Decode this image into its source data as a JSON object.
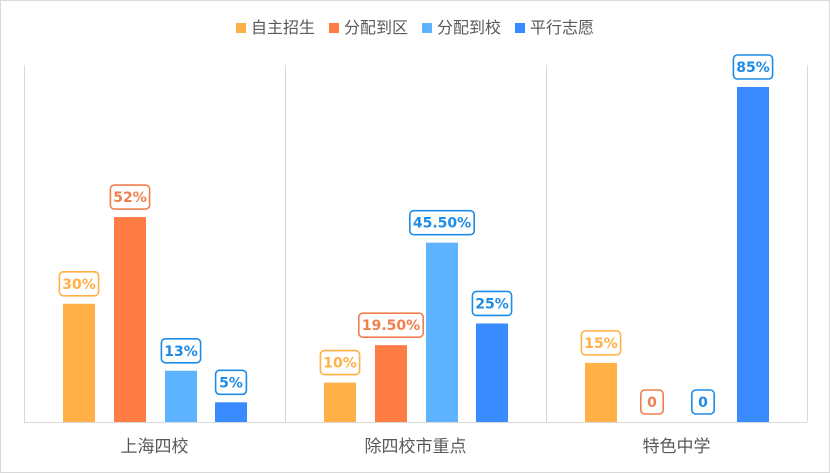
{
  "chart_data": {
    "type": "bar",
    "categories": [
      "上海四校",
      "除四校市重点",
      "特色中学"
    ],
    "series": [
      {
        "name": "自主招生",
        "color": "#FFB047",
        "values": [
          30,
          10,
          15
        ],
        "labels": [
          "30%",
          "10%",
          "15%"
        ]
      },
      {
        "name": "分配到区",
        "color": "#FF7D45",
        "values": [
          52,
          19.5,
          0
        ],
        "labels": [
          "52%",
          "19.50%",
          "0"
        ]
      },
      {
        "name": "分配到校",
        "color": "#5DB3FF",
        "values": [
          13,
          45.5,
          0
        ],
        "labels": [
          "13%",
          "45.50%",
          "0"
        ]
      },
      {
        "name": "平行志愿",
        "color": "#3A8BFF",
        "values": [
          5,
          25,
          85
        ],
        "labels": [
          "5%",
          "25%",
          "85%"
        ]
      }
    ],
    "label_colors": [
      "#FFB047",
      "#F07F4F",
      "#1E8CE6",
      "#1E8CE6"
    ],
    "ylim": [
      0,
      90
    ],
    "legend_position": "top",
    "grid": false
  }
}
